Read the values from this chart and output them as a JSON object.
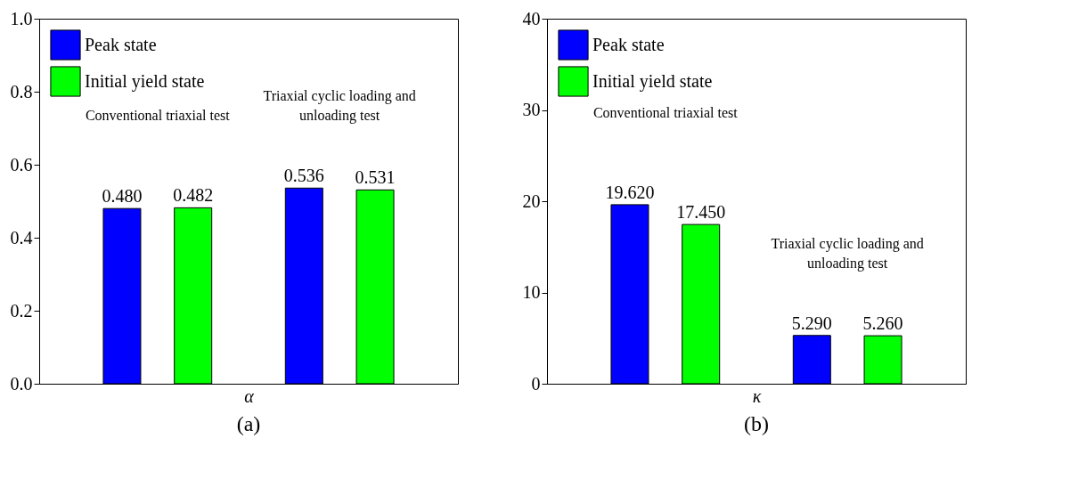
{
  "chart_data": [
    {
      "type": "bar",
      "title": "(a)",
      "xlabel": "α",
      "categories": [
        null,
        null
      ],
      "series": [
        {
          "name": "Peak state",
          "color": "#0000ff",
          "values": [
            0.48,
            0.536
          ],
          "value_labels": [
            "0.480",
            "0.536"
          ]
        },
        {
          "name": "Initial yield state",
          "color": "#00ff00",
          "values": [
            0.482,
            0.531
          ],
          "value_labels": [
            "0.482",
            "0.531"
          ]
        }
      ],
      "ylim": [
        0,
        1.0
      ],
      "yticks": [
        {
          "value": 0,
          "label": "0.0"
        },
        0.2,
        0.4,
        0.6,
        0.8,
        {
          "value": 1.0,
          "label": "1.0"
        }
      ],
      "grid": false,
      "legend": "top left",
      "annotations": [
        "Conventional triaxial test",
        "Triaxial cyclic loading and unloading test"
      ]
    },
    {
      "type": "bar",
      "title": "(b)",
      "xlabel": "κ",
      "categories": [
        null,
        null
      ],
      "series": [
        {
          "name": "Peak state",
          "color": "#0000ff",
          "values": [
            19.62,
            5.29
          ],
          "value_labels": [
            "19.620",
            "5.290"
          ]
        },
        {
          "name": "Initial yield state",
          "color": "#00ff00",
          "values": [
            17.45,
            5.26
          ],
          "value_labels": [
            "17.450",
            "5.260"
          ]
        }
      ],
      "ylim": [
        0,
        40
      ],
      "yticks": [
        0,
        10,
        20,
        30,
        40
      ],
      "grid": false,
      "legend": "top left",
      "annotations": [
        "Conventional triaxial test",
        "Triaxial cyclic loading and unloading test"
      ]
    }
  ]
}
